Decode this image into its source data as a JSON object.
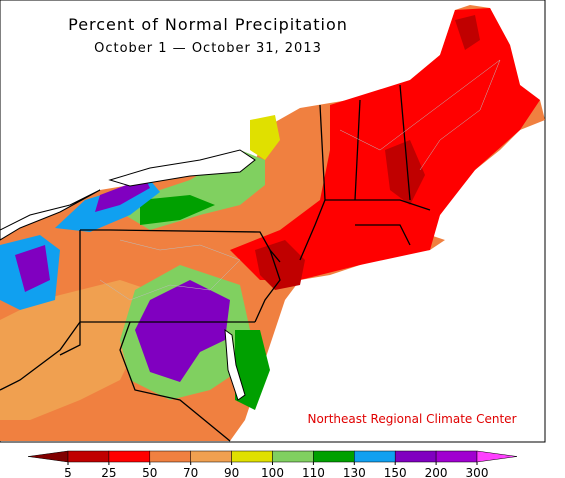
{
  "title": "Percent of Normal Precipitation",
  "subtitle": "October 1 — October 31, 2013",
  "credit": "Northeast Regional Climate Center",
  "colorbar": {
    "ticks": [
      5,
      25,
      50,
      70,
      90,
      100,
      110,
      130,
      150,
      200,
      300
    ],
    "colors": [
      "#c00000",
      "#ff0000",
      "#f08040",
      "#f0a050",
      "#e0e000",
      "#80d060",
      "#00a000",
      "#10a0f0",
      "#8000c0",
      "#a000d0"
    ],
    "under_color": "#800000",
    "over_color": "#ff40ff"
  }
}
